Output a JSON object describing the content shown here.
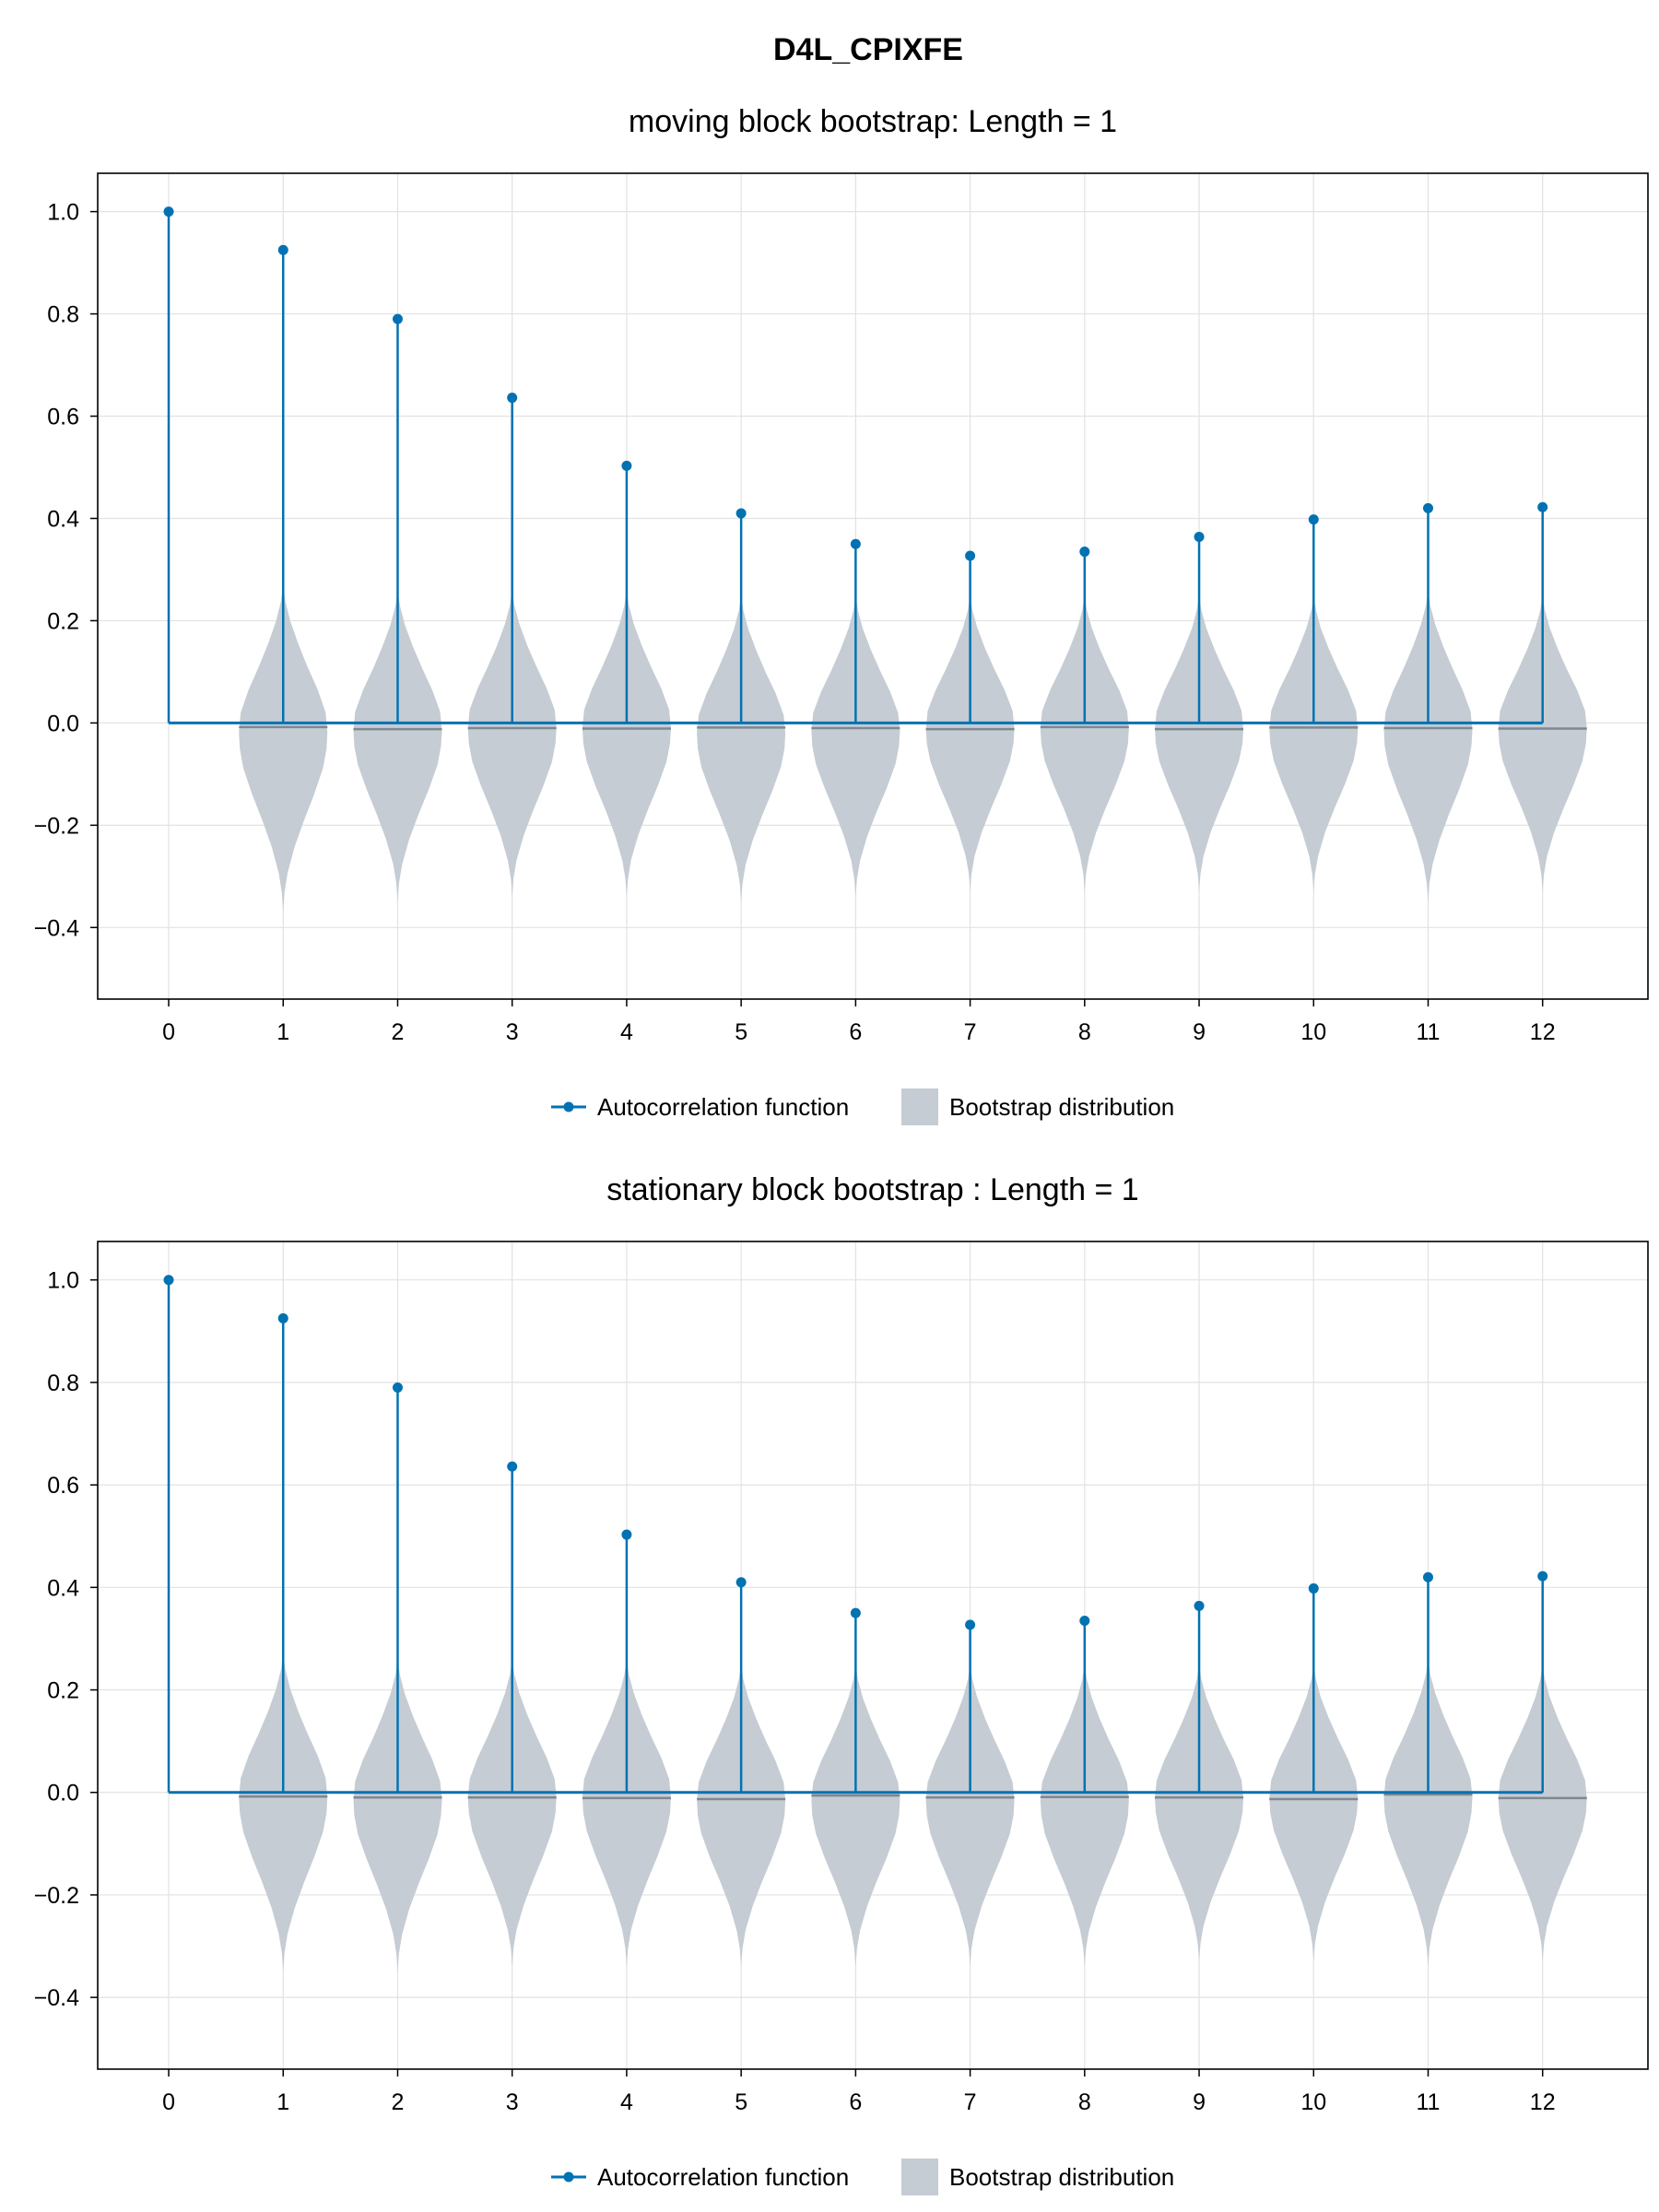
{
  "figure": {
    "title": "D4L_CPIXFE"
  },
  "colors": {
    "acf": "#0072b2",
    "bootstrap_fill": "#c5ccd3",
    "bootstrap_median": "#7f8790",
    "grid": "#e2e2e2",
    "frame": "#000000"
  },
  "legend": {
    "acf_label": "Autocorrelation function",
    "bootstrap_label": "Bootstrap distribution",
    "placement": "bottom-center"
  },
  "chart_data": [
    {
      "type": "stem+violin",
      "title": "moving block bootstrap: Length = 1",
      "xlabel": "",
      "ylabel": "",
      "x": [
        0,
        1,
        2,
        3,
        4,
        5,
        6,
        7,
        8,
        9,
        10,
        11,
        12
      ],
      "x_tick_labels": [
        "0",
        "1",
        "2",
        "3",
        "4",
        "5",
        "6",
        "7",
        "8",
        "9",
        "10",
        "11",
        "12"
      ],
      "y_ticks": [
        -0.4,
        -0.2,
        0.0,
        0.2,
        0.4,
        0.6,
        0.8,
        1.0
      ],
      "y_tick_labels": [
        "−0.4",
        "−0.2",
        "0.0",
        "0.2",
        "0.4",
        "0.6",
        "0.8",
        "1.0"
      ],
      "xlim": [
        -0.62,
        12.92
      ],
      "ylim": [
        -0.54,
        1.075
      ],
      "grid": true,
      "series": [
        {
          "name": "Autocorrelation function",
          "values": [
            1.0,
            0.925,
            0.79,
            0.636,
            0.503,
            0.41,
            0.35,
            0.327,
            0.335,
            0.364,
            0.398,
            0.42,
            0.422
          ]
        }
      ],
      "bootstrap": {
        "name": "Bootstrap distribution",
        "lags": [
          1,
          2,
          3,
          4,
          5,
          6,
          7,
          8,
          9,
          10,
          11,
          12
        ],
        "median": [
          -0.008,
          -0.012,
          -0.01,
          -0.011,
          -0.009,
          -0.01,
          -0.012,
          -0.008,
          -0.012,
          -0.009,
          -0.01,
          -0.011
        ],
        "max": [
          0.27,
          0.26,
          0.26,
          0.26,
          0.25,
          0.25,
          0.25,
          0.25,
          0.25,
          0.25,
          0.26,
          0.25
        ],
        "min": [
          -0.37,
          -0.35,
          -0.34,
          -0.34,
          -0.35,
          -0.34,
          -0.33,
          -0.33,
          -0.33,
          -0.33,
          -0.35,
          -0.33
        ]
      }
    },
    {
      "type": "stem+violin",
      "title": "stationary block bootstrap : Length = 1",
      "xlabel": "",
      "ylabel": "",
      "x": [
        0,
        1,
        2,
        3,
        4,
        5,
        6,
        7,
        8,
        9,
        10,
        11,
        12
      ],
      "x_tick_labels": [
        "0",
        "1",
        "2",
        "3",
        "4",
        "5",
        "6",
        "7",
        "8",
        "9",
        "10",
        "11",
        "12"
      ],
      "y_ticks": [
        -0.4,
        -0.2,
        0.0,
        0.2,
        0.4,
        0.6,
        0.8,
        1.0
      ],
      "y_tick_labels": [
        "−0.4",
        "−0.2",
        "0.0",
        "0.2",
        "0.4",
        "0.6",
        "0.8",
        "1.0"
      ],
      "xlim": [
        -0.62,
        12.92
      ],
      "ylim": [
        -0.54,
        1.075
      ],
      "grid": true,
      "series": [
        {
          "name": "Autocorrelation function",
          "values": [
            1.0,
            0.925,
            0.79,
            0.636,
            0.503,
            0.41,
            0.35,
            0.327,
            0.335,
            0.364,
            0.398,
            0.42,
            0.422
          ]
        }
      ],
      "bootstrap": {
        "name": "Bootstrap distribution",
        "lags": [
          1,
          2,
          3,
          4,
          5,
          6,
          7,
          8,
          9,
          10,
          11,
          12
        ],
        "median": [
          -0.008,
          -0.01,
          -0.01,
          -0.011,
          -0.013,
          -0.006,
          -0.01,
          -0.009,
          -0.01,
          -0.013,
          -0.004,
          -0.011
        ],
        "max": [
          0.27,
          0.26,
          0.26,
          0.26,
          0.25,
          0.25,
          0.25,
          0.25,
          0.25,
          0.25,
          0.26,
          0.25
        ],
        "min": [
          -0.35,
          -0.35,
          -0.34,
          -0.34,
          -0.34,
          -0.34,
          -0.34,
          -0.34,
          -0.33,
          -0.33,
          -0.34,
          -0.33
        ]
      }
    }
  ]
}
